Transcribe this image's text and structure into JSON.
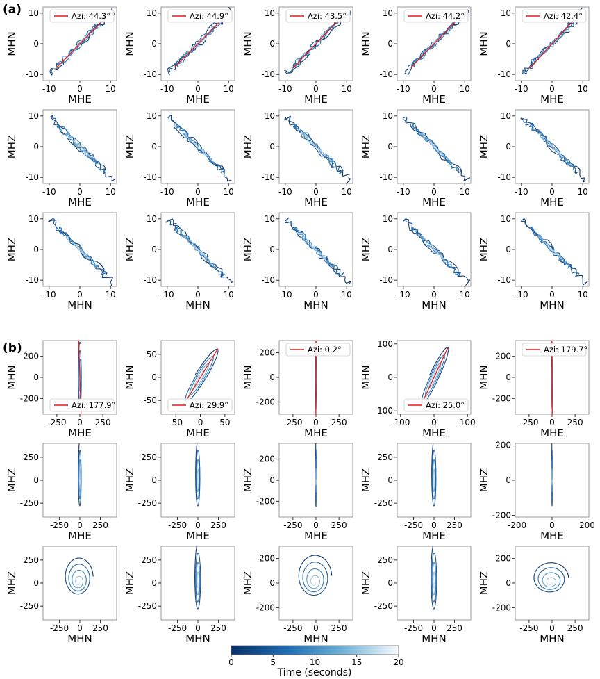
{
  "figure": {
    "panel_labels": [
      "(a)",
      "(b)"
    ],
    "colors": {
      "trajectory_start": "#08306b",
      "trajectory_mid": "#3182bd",
      "trajectory_end": "#deebf7",
      "azimuth_line": "#e31a1c",
      "frame": "#999999"
    }
  },
  "chart_data": [
    {
      "id": "a-r1-c1",
      "type": "line",
      "xlabel": "MHE",
      "ylabel": "MHN",
      "xlim": [
        -12,
        12
      ],
      "ylim": [
        -12,
        12
      ],
      "xticks": [
        -10,
        0,
        10
      ],
      "yticks": [
        -10,
        0,
        10
      ],
      "legend": "Azi: 44.3°",
      "legend_loc": "upper-right",
      "azimuth_deg": 44.3,
      "kind": "diag-pos",
      "amp": 11,
      "tail": [
        5,
        5
      ]
    },
    {
      "id": "a-r1-c2",
      "type": "line",
      "xlabel": "MHE",
      "ylabel": "MHN",
      "xlim": [
        -12,
        12
      ],
      "ylim": [
        -12,
        12
      ],
      "xticks": [
        -10,
        0,
        10
      ],
      "yticks": [
        -10,
        0,
        10
      ],
      "legend": "Azi: 44.9°",
      "legend_loc": "upper-right",
      "azimuth_deg": 44.9,
      "kind": "diag-pos",
      "amp": 11,
      "tail": [
        5,
        5
      ]
    },
    {
      "id": "a-r1-c3",
      "type": "line",
      "xlabel": "MHE",
      "ylabel": "MHN",
      "xlim": [
        -12,
        12
      ],
      "ylim": [
        -12,
        12
      ],
      "xticks": [
        -10,
        0,
        10
      ],
      "yticks": [
        -10,
        0,
        10
      ],
      "legend": "Azi: 43.5°",
      "legend_loc": "upper-right",
      "azimuth_deg": 43.5,
      "kind": "diag-pos",
      "amp": 11,
      "tail": [
        5,
        5
      ]
    },
    {
      "id": "a-r1-c4",
      "type": "line",
      "xlabel": "MHE",
      "ylabel": "MHN",
      "xlim": [
        -12,
        12
      ],
      "ylim": [
        -12,
        12
      ],
      "xticks": [
        -10,
        0,
        10
      ],
      "yticks": [
        -10,
        0,
        10
      ],
      "legend": "Azi: 44.2°",
      "legend_loc": "upper-right",
      "azimuth_deg": 44.2,
      "kind": "diag-pos",
      "amp": 11,
      "tail": [
        5,
        5
      ]
    },
    {
      "id": "a-r1-c5",
      "type": "line",
      "xlabel": "MHE",
      "ylabel": "MHN",
      "xlim": [
        -12,
        12
      ],
      "ylim": [
        -12,
        12
      ],
      "xticks": [
        -10,
        0,
        10
      ],
      "yticks": [
        -10,
        0,
        10
      ],
      "legend": "Azi: 42.4°",
      "legend_loc": "upper-right",
      "azimuth_deg": 42.4,
      "kind": "diag-pos",
      "amp": 11,
      "tail": [
        5,
        5
      ]
    },
    {
      "id": "a-r2-c1",
      "type": "line",
      "xlabel": "MHE",
      "ylabel": "MHZ",
      "xlim": [
        -12,
        12
      ],
      "ylim": [
        -12,
        12
      ],
      "xticks": [
        -10,
        0,
        10
      ],
      "yticks": [
        -10,
        0,
        10
      ],
      "kind": "diag-neg",
      "amp": 11,
      "tail": [
        5,
        -5
      ]
    },
    {
      "id": "a-r2-c2",
      "type": "line",
      "xlabel": "MHE",
      "ylabel": "MHZ",
      "xlim": [
        -12,
        12
      ],
      "ylim": [
        -12,
        12
      ],
      "xticks": [
        -10,
        0,
        10
      ],
      "yticks": [
        -10,
        0,
        10
      ],
      "kind": "diag-neg",
      "amp": 11,
      "tail": [
        5,
        -5
      ]
    },
    {
      "id": "a-r2-c3",
      "type": "line",
      "xlabel": "MHE",
      "ylabel": "MHZ",
      "xlim": [
        -12,
        12
      ],
      "ylim": [
        -12,
        12
      ],
      "xticks": [
        -10,
        0,
        10
      ],
      "yticks": [
        -10,
        0,
        10
      ],
      "kind": "diag-neg",
      "amp": 11,
      "tail": [
        5,
        -5
      ]
    },
    {
      "id": "a-r2-c4",
      "type": "line",
      "xlabel": "MHE",
      "ylabel": "MHZ",
      "xlim": [
        -12,
        12
      ],
      "ylim": [
        -12,
        12
      ],
      "xticks": [
        -10,
        0,
        10
      ],
      "yticks": [
        -10,
        0,
        10
      ],
      "kind": "diag-neg",
      "amp": 11,
      "tail": [
        5,
        -5
      ]
    },
    {
      "id": "a-r2-c5",
      "type": "line",
      "xlabel": "MHE",
      "ylabel": "MHZ",
      "xlim": [
        -12,
        12
      ],
      "ylim": [
        -12,
        12
      ],
      "xticks": [
        -10,
        0,
        10
      ],
      "yticks": [
        -10,
        0,
        10
      ],
      "kind": "diag-neg",
      "amp": 11,
      "tail": [
        5,
        -5
      ]
    },
    {
      "id": "a-r3-c1",
      "type": "line",
      "xlabel": "MHN",
      "ylabel": "MHZ",
      "xlim": [
        -12,
        12
      ],
      "ylim": [
        -12,
        12
      ],
      "xticks": [
        -10,
        0,
        10
      ],
      "yticks": [
        -10,
        0,
        10
      ],
      "kind": "diag-neg",
      "amp": 11,
      "tail": [
        5,
        -5
      ]
    },
    {
      "id": "a-r3-c2",
      "type": "line",
      "xlabel": "MHN",
      "ylabel": "MHZ",
      "xlim": [
        -12,
        12
      ],
      "ylim": [
        -12,
        12
      ],
      "xticks": [
        -10,
        0,
        10
      ],
      "yticks": [
        -10,
        0,
        10
      ],
      "kind": "diag-neg",
      "amp": 11,
      "tail": [
        5,
        -5
      ]
    },
    {
      "id": "a-r3-c3",
      "type": "line",
      "xlabel": "MHN",
      "ylabel": "MHZ",
      "xlim": [
        -12,
        12
      ],
      "ylim": [
        -12,
        12
      ],
      "xticks": [
        -10,
        0,
        10
      ],
      "yticks": [
        -10,
        0,
        10
      ],
      "kind": "diag-neg",
      "amp": 11,
      "tail": [
        5,
        -5
      ]
    },
    {
      "id": "a-r3-c4",
      "type": "line",
      "xlabel": "MHN",
      "ylabel": "MHZ",
      "xlim": [
        -12,
        12
      ],
      "ylim": [
        -12,
        12
      ],
      "xticks": [
        -10,
        0,
        10
      ],
      "yticks": [
        -10,
        0,
        10
      ],
      "kind": "diag-neg",
      "amp": 11,
      "tail": [
        5,
        -5
      ]
    },
    {
      "id": "a-r3-c5",
      "type": "line",
      "xlabel": "MHN",
      "ylabel": "MHZ",
      "xlim": [
        -12,
        12
      ],
      "ylim": [
        -12,
        12
      ],
      "xticks": [
        -10,
        0,
        10
      ],
      "yticks": [
        -10,
        0,
        10
      ],
      "kind": "diag-neg",
      "amp": 11,
      "tail": [
        5,
        -5
      ]
    },
    {
      "id": "b-r1-c1",
      "type": "line",
      "xlabel": "MHE",
      "ylabel": "MHN",
      "xlim": [
        -400,
        400
      ],
      "ylim": [
        -350,
        350
      ],
      "xticks": [
        -250,
        0,
        250
      ],
      "yticks": [
        -200,
        0,
        200
      ],
      "legend": "Azi: 177.9°",
      "legend_loc": "lower-right",
      "azimuth_deg": 177.9,
      "kind": "narrow-v",
      "amp": 340,
      "width": 40
    },
    {
      "id": "b-r1-c2",
      "type": "line",
      "xlabel": "MHE",
      "ylabel": "MHN",
      "xlim": [
        -80,
        70
      ],
      "ylim": [
        -80,
        80
      ],
      "xticks": [
        -50,
        0,
        50
      ],
      "yticks": [
        -50,
        0,
        50
      ],
      "legend": "Azi: 29.9°",
      "legend_loc": "lower-right",
      "azimuth_deg": 29.9,
      "kind": "ellipse-tilt",
      "amp": 75,
      "width": 12
    },
    {
      "id": "b-r1-c3",
      "type": "line",
      "xlabel": "MHE",
      "ylabel": "MHN",
      "xlim": [
        -400,
        400
      ],
      "ylim": [
        -300,
        300
      ],
      "xticks": [
        -250,
        0,
        250
      ],
      "yticks": [
        -200,
        0,
        200
      ],
      "legend": "Azi: 0.2°",
      "legend_loc": "upper-right",
      "azimuth_deg": 0.2,
      "kind": "narrow-v",
      "amp": 300,
      "width": 8
    },
    {
      "id": "b-r1-c4",
      "type": "line",
      "xlabel": "MHE",
      "ylabel": "MHN",
      "xlim": [
        -110,
        110
      ],
      "ylim": [
        -110,
        110
      ],
      "xticks": [
        -100,
        0,
        100
      ],
      "yticks": [
        -100,
        0,
        100
      ],
      "legend": "Azi: 25.0°",
      "legend_loc": "lower-right",
      "azimuth_deg": 25.0,
      "kind": "ellipse-tilt",
      "amp": 105,
      "width": 15
    },
    {
      "id": "b-r1-c5",
      "type": "line",
      "xlabel": "MHE",
      "ylabel": "MHN",
      "xlim": [
        -400,
        400
      ],
      "ylim": [
        -350,
        350
      ],
      "xticks": [
        -250,
        0,
        250
      ],
      "yticks": [
        -200,
        0,
        200
      ],
      "legend": "Azi: 179.7°",
      "legend_loc": "upper-right",
      "azimuth_deg": 179.7,
      "kind": "narrow-v",
      "amp": 340,
      "width": 6
    },
    {
      "id": "b-r2-c1",
      "type": "line",
      "xlabel": "MHE",
      "ylabel": "MHZ",
      "xlim": [
        -450,
        450
      ],
      "ylim": [
        -400,
        400
      ],
      "xticks": [
        -250,
        0,
        250
      ],
      "yticks": [
        -250,
        0,
        250
      ],
      "kind": "vert-ellipse",
      "amp": 380,
      "width": 40
    },
    {
      "id": "b-r2-c2",
      "type": "line",
      "xlabel": "MHE",
      "ylabel": "MHZ",
      "xlim": [
        -450,
        450
      ],
      "ylim": [
        -400,
        400
      ],
      "xticks": [
        -250,
        0,
        250
      ],
      "yticks": [
        -250,
        0,
        250
      ],
      "kind": "vert-ellipse",
      "amp": 380,
      "width": 60
    },
    {
      "id": "b-r2-c3",
      "type": "line",
      "xlabel": "MHE",
      "ylabel": "MHZ",
      "xlim": [
        -400,
        400
      ],
      "ylim": [
        -350,
        350
      ],
      "xticks": [
        -250,
        0,
        250
      ],
      "yticks": [
        -200,
        0,
        200
      ],
      "kind": "vert-ellipse",
      "amp": 340,
      "width": 8
    },
    {
      "id": "b-r2-c4",
      "type": "line",
      "xlabel": "MHE",
      "ylabel": "MHZ",
      "xlim": [
        -450,
        450
      ],
      "ylim": [
        -400,
        400
      ],
      "xticks": [
        -250,
        0,
        250
      ],
      "yticks": [
        -250,
        0,
        250
      ],
      "kind": "vert-ellipse",
      "amp": 380,
      "width": 60
    },
    {
      "id": "b-r2-c5",
      "type": "line",
      "xlabel": "MHE",
      "ylabel": "MHZ",
      "xlim": [
        -210,
        210
      ],
      "ylim": [
        -210,
        210
      ],
      "xticks": [
        -200,
        0,
        200
      ],
      "yticks": [
        -200,
        0,
        200
      ],
      "kind": "vert-ellipse",
      "amp": 200,
      "width": 4
    },
    {
      "id": "b-r3-c1",
      "type": "line",
      "xlabel": "MHN",
      "ylabel": "MHZ",
      "xlim": [
        -450,
        450
      ],
      "ylim": [
        -400,
        400
      ],
      "xticks": [
        -250,
        0,
        250
      ],
      "yticks": [
        -250,
        0,
        250
      ],
      "kind": "spiral",
      "amp": 360,
      "width": 360
    },
    {
      "id": "b-r3-c2",
      "type": "line",
      "xlabel": "MHN",
      "ylabel": "MHZ",
      "xlim": [
        -450,
        450
      ],
      "ylim": [
        -400,
        400
      ],
      "xticks": [
        -250,
        0,
        250
      ],
      "yticks": [
        -250,
        0,
        250
      ],
      "kind": "vert-ellipse",
      "amp": 380,
      "width": 80
    },
    {
      "id": "b-r3-c3",
      "type": "line",
      "xlabel": "MHN",
      "ylabel": "MHZ",
      "xlim": [
        -400,
        400
      ],
      "ylim": [
        -300,
        300
      ],
      "xticks": [
        -250,
        0,
        250
      ],
      "yticks": [
        -200,
        0,
        200
      ],
      "kind": "spiral",
      "amp": 300,
      "width": 380
    },
    {
      "id": "b-r3-c4",
      "type": "line",
      "xlabel": "MHN",
      "ylabel": "MHZ",
      "xlim": [
        -450,
        450
      ],
      "ylim": [
        -400,
        400
      ],
      "xticks": [
        -250,
        0,
        250
      ],
      "yticks": [
        -250,
        0,
        250
      ],
      "kind": "vert-ellipse",
      "amp": 380,
      "width": 80
    },
    {
      "id": "b-r3-c5",
      "type": "line",
      "xlabel": "MHN",
      "ylabel": "MHZ",
      "xlim": [
        -400,
        400
      ],
      "ylim": [
        -300,
        300
      ],
      "xticks": [
        -250,
        0,
        250
      ],
      "yticks": [
        -200,
        0,
        200
      ],
      "kind": "flat-spiral",
      "amp": 220,
      "width": 400
    }
  ],
  "colorbar": {
    "label": "Time (seconds)",
    "range": [
      0,
      20
    ],
    "ticks": [
      0,
      5,
      10,
      15,
      20
    ],
    "cmap": "Blues_r"
  }
}
